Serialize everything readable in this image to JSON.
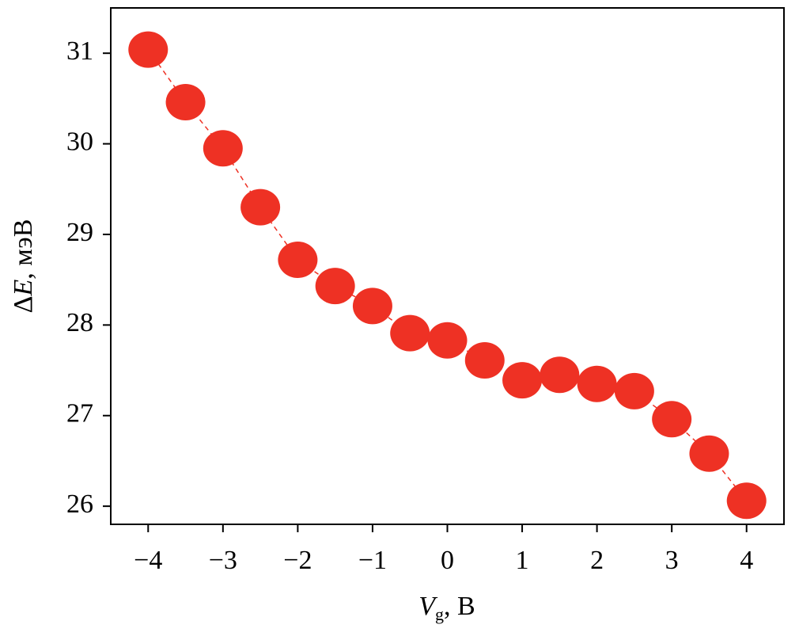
{
  "chart_data": {
    "type": "line",
    "x_label": [
      "V",
      "g",
      ", В"
    ],
    "y_label": [
      "Δ",
      "E",
      ", мэВ"
    ],
    "x": [
      -4,
      -3.5,
      -3,
      -2.5,
      -2,
      -1.5,
      -1,
      -0.5,
      0,
      0.5,
      1,
      1.5,
      2,
      2.5,
      3,
      3.5,
      4
    ],
    "series": [
      {
        "color": "#ee3124",
        "values": [
          31.04,
          30.46,
          29.95,
          29.3,
          28.72,
          28.43,
          28.21,
          27.91,
          27.83,
          27.61,
          27.39,
          27.45,
          27.35,
          27.27,
          26.96,
          26.58,
          26.06
        ]
      }
    ],
    "xlim": [
      -4.5,
      4.5
    ],
    "ylim": [
      25.8,
      31.5
    ],
    "xticks": [
      {
        "value": -4,
        "label": "−4"
      },
      {
        "value": -3,
        "label": "−3"
      },
      {
        "value": -2,
        "label": "−2"
      },
      {
        "value": -1,
        "label": "−1"
      },
      0,
      1,
      2,
      3,
      4
    ],
    "yticks": [
      26,
      27,
      28,
      29,
      30,
      31
    ],
    "grid": false
  }
}
